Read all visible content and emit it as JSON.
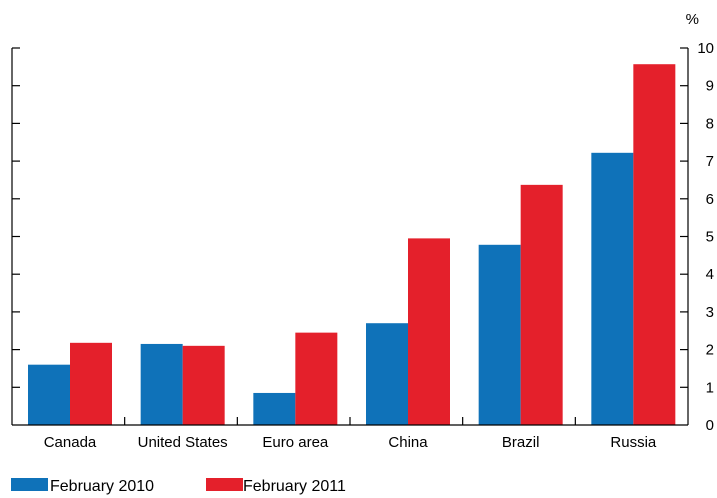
{
  "chart_data": {
    "type": "bar",
    "categories": [
      "Canada",
      "United States",
      "Euro area",
      "China",
      "Brazil",
      "Russia"
    ],
    "series": [
      {
        "name": "February 2010",
        "color": "#0f72b9",
        "values": [
          1.6,
          2.15,
          0.85,
          2.7,
          4.78,
          7.22
        ]
      },
      {
        "name": "February 2011",
        "color": "#e4202b",
        "values": [
          2.18,
          2.1,
          2.45,
          4.95,
          6.37,
          9.57
        ]
      }
    ],
    "y_unit": "%",
    "ylim": [
      0,
      10
    ],
    "yticks": [
      "0",
      "1",
      "2",
      "3",
      "4",
      "5",
      "6",
      "7",
      "8",
      "9",
      "10"
    ],
    "y_axis_side": "right",
    "grid": false,
    "legend_position": "bottom-left"
  }
}
